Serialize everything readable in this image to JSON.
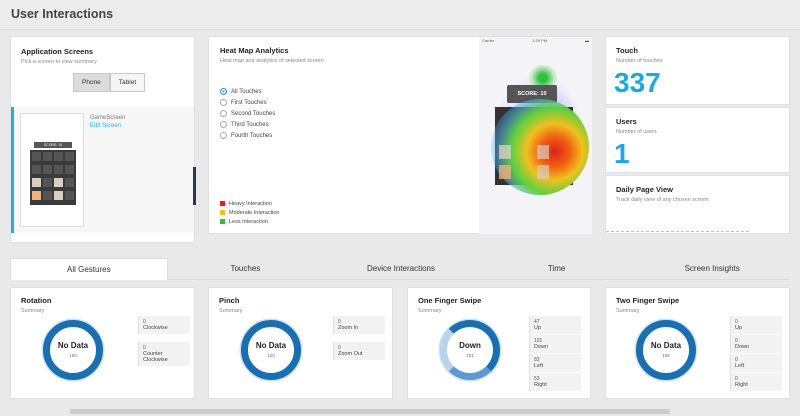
{
  "header": {
    "title": "User Interactions"
  },
  "app_screens": {
    "title": "Application Screens",
    "subtitle": "Pick a screen to view summary",
    "toggle": [
      "Phone",
      "Tablet"
    ],
    "selected_screen": {
      "name": "GameScreen",
      "edit": "Edit Screen",
      "score": "SCORE: 10"
    }
  },
  "heatmap": {
    "title": "Heat Map Analytics",
    "subtitle": "Heat map and analytics of selected screen",
    "options": [
      "All Touches",
      "First Touches",
      "Second Touches",
      "Third Touches",
      "Fourth Touches"
    ],
    "selected_option": "All Touches",
    "legend": [
      {
        "label": "Heavy Interaction",
        "color": "#e02020"
      },
      {
        "label": "Moderate Interaction",
        "color": "#f0c020"
      },
      {
        "label": "Less Interaction",
        "color": "#30c040"
      }
    ],
    "phone_status": {
      "carrier": "Carrier",
      "time": "1:29 PM"
    },
    "score": "SCORE: 10"
  },
  "touch": {
    "title": "Touch",
    "subtitle": "Number of touches",
    "value": "337"
  },
  "users": {
    "title": "Users",
    "subtitle": "Number of users",
    "value": "1"
  },
  "daily": {
    "title": "Daily Page View",
    "subtitle": "Track daily view of any chosen screen"
  },
  "tabs": [
    "All Gestures",
    "Touches",
    "Device Interactions",
    "Time",
    "Screen Insights"
  ],
  "active_tab": "All Gestures",
  "gestures": [
    {
      "title": "Rotation",
      "subtitle": "Summary",
      "center": "No Data",
      "center_sub": "100",
      "stats": [
        {
          "n": "0",
          "label": "Clockwise"
        },
        {
          "n": "0",
          "label": "Counter Clockwise"
        }
      ]
    },
    {
      "title": "Pinch",
      "subtitle": "Summary",
      "center": "No Data",
      "center_sub": "120",
      "stats": [
        {
          "n": "0",
          "label": "Zoom In"
        },
        {
          "n": "0",
          "label": "Zoom Out"
        }
      ]
    },
    {
      "title": "One Finger Swipe",
      "subtitle": "Summary",
      "center": "Down",
      "center_sub": "101",
      "stats": [
        {
          "n": "47",
          "label": "Up"
        },
        {
          "n": "101",
          "label": "Down"
        },
        {
          "n": "83",
          "label": "Left"
        },
        {
          "n": "53",
          "label": "Right"
        }
      ]
    },
    {
      "title": "Two Finger Swipe",
      "subtitle": "Summary",
      "center": "No Data",
      "center_sub": "100",
      "stats": [
        {
          "n": "0",
          "label": "Up"
        },
        {
          "n": "0",
          "label": "Down"
        },
        {
          "n": "0",
          "label": "Left"
        },
        {
          "n": "0",
          "label": "Right"
        }
      ]
    }
  ],
  "colors": {
    "accent": "#1fa8e0",
    "donut": "#1a6fb0"
  }
}
